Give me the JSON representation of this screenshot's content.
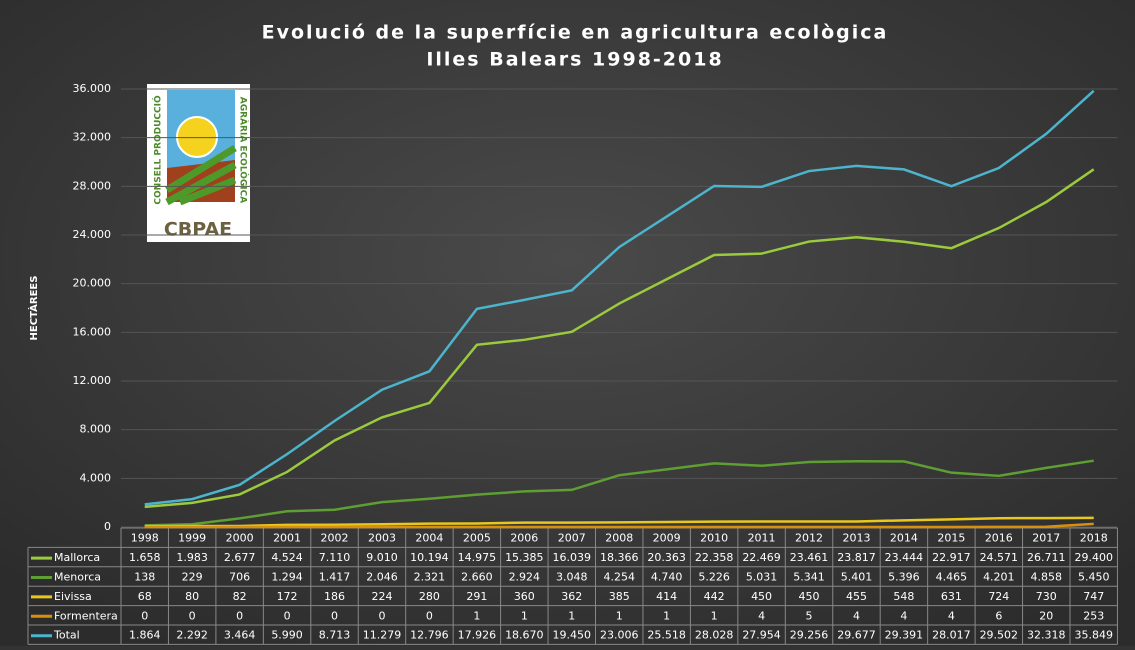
{
  "chart_data": {
    "type": "line",
    "title": [
      "Evolució de la superfície en agricultura ecològica",
      "Illes Balears 1998-2018"
    ],
    "y_label": "HECTÀREES",
    "logo": {
      "top": "CONSELL PRODUCCIÓ",
      "side": "AGRÀRIA ECOLÒGICA",
      "name": "CBPAE"
    },
    "categories": [
      "1998",
      "1999",
      "2000",
      "2001",
      "2002",
      "2003",
      "2004",
      "2005",
      "2006",
      "2007",
      "2008",
      "2009",
      "2010",
      "2011",
      "2012",
      "2013",
      "2014",
      "2015",
      "2016",
      "2017",
      "2018"
    ],
    "ylim": [
      0,
      36000
    ],
    "yticks": [
      0,
      {
        "value": 4000,
        "label": "4.000"
      },
      {
        "value": 8000,
        "label": "8.000"
      },
      {
        "value": 12000,
        "label": "12.000"
      },
      {
        "value": 16000,
        "label": "16.000"
      },
      {
        "value": 20000,
        "label": "20.000"
      },
      {
        "value": 24000,
        "label": "24.000"
      },
      {
        "value": 28000,
        "label": "28.000"
      },
      {
        "value": 32000,
        "label": "32.000"
      },
      {
        "value": 36000,
        "label": "36.000"
      }
    ],
    "grid": true,
    "series": [
      {
        "name": "Mallorca",
        "color": "#9bcb3c",
        "values": [
          1658,
          1983,
          2677,
          4524,
          7110,
          9010,
          10194,
          14975,
          15385,
          16039,
          18366,
          20363,
          22358,
          22469,
          23461,
          23817,
          23444,
          22917,
          24571,
          26711,
          29400
        ],
        "value_labels": [
          "1.658",
          "1.983",
          "2.677",
          "4.524",
          "7.110",
          "9.010",
          "10.194",
          "14.975",
          "15.385",
          "16.039",
          "18.366",
          "20.363",
          "22.358",
          "22.469",
          "23.461",
          "23.817",
          "23.444",
          "22.917",
          "24.571",
          "26.711",
          "29.400"
        ]
      },
      {
        "name": "Menorca",
        "color": "#5e9e32",
        "values": [
          138,
          229,
          706,
          1294,
          1417,
          2046,
          2321,
          2660,
          2924,
          3048,
          4254,
          4740,
          5226,
          5031,
          5341,
          5401,
          5396,
          4465,
          4201,
          4858,
          5450
        ],
        "value_labels": [
          "138",
          "229",
          "706",
          "1.294",
          "1.417",
          "2.046",
          "2.321",
          "2.660",
          "2.924",
          "3.048",
          "4.254",
          "4.740",
          "5.226",
          "5.031",
          "5.341",
          "5.401",
          "5.396",
          "4.465",
          "4.201",
          "4.858",
          "5.450"
        ]
      },
      {
        "name": "Eivissa",
        "color": "#e8c81c",
        "values": [
          68,
          80,
          82,
          172,
          186,
          224,
          280,
          291,
          360,
          362,
          385,
          414,
          442,
          450,
          450,
          455,
          548,
          631,
          724,
          730,
          747
        ],
        "value_labels": [
          "68",
          "80",
          "82",
          "172",
          "186",
          "224",
          "280",
          "291",
          "360",
          "362",
          "385",
          "414",
          "442",
          "450",
          "450",
          "455",
          "548",
          "631",
          "724",
          "730",
          "747"
        ]
      },
      {
        "name": "Formentera",
        "color": "#d8900c",
        "values": [
          0,
          0,
          0,
          0,
          0,
          0,
          0,
          1,
          1,
          1,
          1,
          1,
          1,
          4,
          5,
          4,
          4,
          4,
          6,
          20,
          253
        ],
        "value_labels": [
          "0",
          "0",
          "0",
          "0",
          "0",
          "0",
          "0",
          "1",
          "1",
          "1",
          "1",
          "1",
          "1",
          "4",
          "5",
          "4",
          "4",
          "4",
          "6",
          "20",
          "253"
        ]
      },
      {
        "name": "Total",
        "color": "#4cb4cc",
        "values": [
          1864,
          2292,
          3464,
          5990,
          8713,
          11279,
          12796,
          17926,
          18670,
          19450,
          23006,
          25518,
          28028,
          27954,
          29256,
          29677,
          29391,
          28017,
          29502,
          32318,
          35849
        ],
        "value_labels": [
          "1.864",
          "2.292",
          "3.464",
          "5.990",
          "8.713",
          "11.279",
          "12.796",
          "17.926",
          "18.670",
          "19.450",
          "23.006",
          "25.518",
          "28.028",
          "27.954",
          "29.256",
          "29.677",
          "29.391",
          "28.017",
          "29.502",
          "32.318",
          "35.849"
        ]
      }
    ]
  }
}
